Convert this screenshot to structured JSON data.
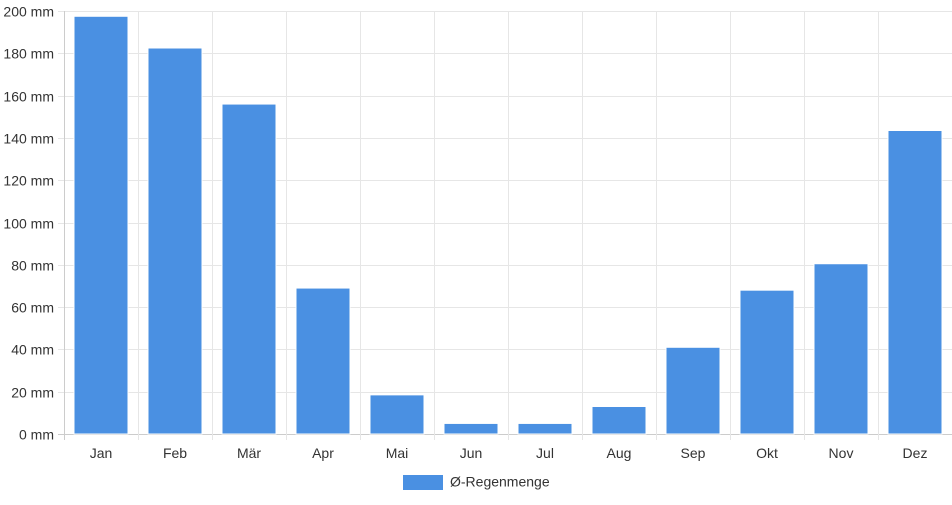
{
  "chart_data": {
    "type": "bar",
    "categories": [
      "Jan",
      "Feb",
      "Mär",
      "Apr",
      "Mai",
      "Jun",
      "Jul",
      "Aug",
      "Sep",
      "Okt",
      "Nov",
      "Dez"
    ],
    "series": [
      {
        "name": "Ø-Regenmenge",
        "values": [
          197.5,
          182.5,
          156,
          69,
          18.5,
          5,
          5,
          13,
          41,
          68,
          80.5,
          143.5
        ]
      }
    ],
    "ylim": [
      0,
      200
    ],
    "y_ticks": [
      0,
      20,
      40,
      60,
      80,
      100,
      120,
      140,
      160,
      180,
      200
    ],
    "y_tick_suffix": " mm",
    "title": "",
    "xlabel": "",
    "ylabel": "",
    "grid": true,
    "legend_position": "bottom-center",
    "colors": {
      "bar": "#4a90e2",
      "grid": "#e6e6e6",
      "axis": "#cccccc",
      "text": "#333333"
    }
  }
}
